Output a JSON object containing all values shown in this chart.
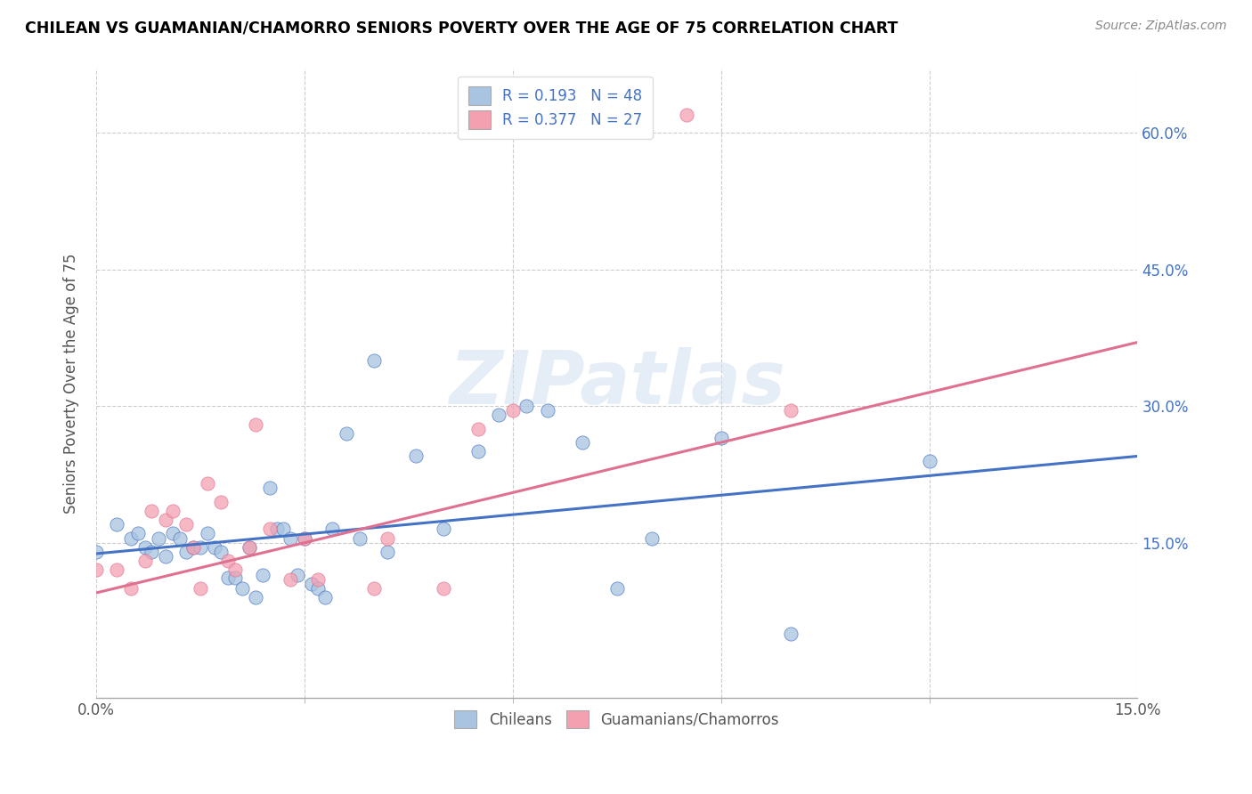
{
  "title": "CHILEAN VS GUAMANIAN/CHAMORRO SENIORS POVERTY OVER THE AGE OF 75 CORRELATION CHART",
  "source": "Source: ZipAtlas.com",
  "ylabel": "Seniors Poverty Over the Age of 75",
  "xlim": [
    0.0,
    0.15
  ],
  "ylim": [
    -0.02,
    0.67
  ],
  "xtick_show": [
    0.0,
    0.15
  ],
  "xtick_minor": [
    0.03,
    0.06,
    0.09,
    0.12
  ],
  "ytick_vals": [
    0.15,
    0.3,
    0.45,
    0.6
  ],
  "ytick_labels": [
    "15.0%",
    "30.0%",
    "45.0%",
    "60.0%"
  ],
  "blue_R": 0.193,
  "blue_N": 48,
  "pink_R": 0.377,
  "pink_N": 27,
  "blue_color": "#a8c4e0",
  "pink_color": "#f4a0b0",
  "blue_line_color": "#4472c4",
  "pink_line_color": "#e07090",
  "legend_label_blue": "Chileans",
  "legend_label_pink": "Guamanians/Chamorros",
  "watermark": "ZIPatlas",
  "blue_scatter_x": [
    0.0,
    0.003,
    0.005,
    0.006,
    0.007,
    0.008,
    0.009,
    0.01,
    0.011,
    0.012,
    0.013,
    0.014,
    0.015,
    0.016,
    0.017,
    0.018,
    0.019,
    0.02,
    0.021,
    0.022,
    0.023,
    0.024,
    0.025,
    0.026,
    0.027,
    0.028,
    0.029,
    0.03,
    0.031,
    0.032,
    0.033,
    0.034,
    0.036,
    0.038,
    0.04,
    0.042,
    0.046,
    0.05,
    0.055,
    0.058,
    0.062,
    0.065,
    0.07,
    0.075,
    0.08,
    0.09,
    0.1,
    0.12
  ],
  "blue_scatter_y": [
    0.14,
    0.17,
    0.155,
    0.16,
    0.145,
    0.14,
    0.155,
    0.135,
    0.16,
    0.155,
    0.14,
    0.145,
    0.145,
    0.16,
    0.145,
    0.14,
    0.112,
    0.112,
    0.1,
    0.145,
    0.09,
    0.115,
    0.21,
    0.165,
    0.165,
    0.155,
    0.115,
    0.155,
    0.105,
    0.1,
    0.09,
    0.165,
    0.27,
    0.155,
    0.35,
    0.14,
    0.245,
    0.165,
    0.25,
    0.29,
    0.3,
    0.295,
    0.26,
    0.1,
    0.155,
    0.265,
    0.05,
    0.24
  ],
  "pink_scatter_x": [
    0.0,
    0.003,
    0.005,
    0.007,
    0.008,
    0.01,
    0.011,
    0.013,
    0.014,
    0.015,
    0.016,
    0.018,
    0.019,
    0.02,
    0.022,
    0.023,
    0.025,
    0.028,
    0.03,
    0.032,
    0.04,
    0.042,
    0.05,
    0.055,
    0.06,
    0.085,
    0.1
  ],
  "pink_scatter_y": [
    0.12,
    0.12,
    0.1,
    0.13,
    0.185,
    0.175,
    0.185,
    0.17,
    0.145,
    0.1,
    0.215,
    0.195,
    0.13,
    0.12,
    0.145,
    0.28,
    0.165,
    0.11,
    0.155,
    0.11,
    0.1,
    0.155,
    0.1,
    0.275,
    0.295,
    0.62,
    0.295
  ],
  "blue_trend_x": [
    0.0,
    0.15
  ],
  "blue_trend_y": [
    0.138,
    0.245
  ],
  "pink_trend_x": [
    0.0,
    0.15
  ],
  "pink_trend_y": [
    0.095,
    0.37
  ]
}
